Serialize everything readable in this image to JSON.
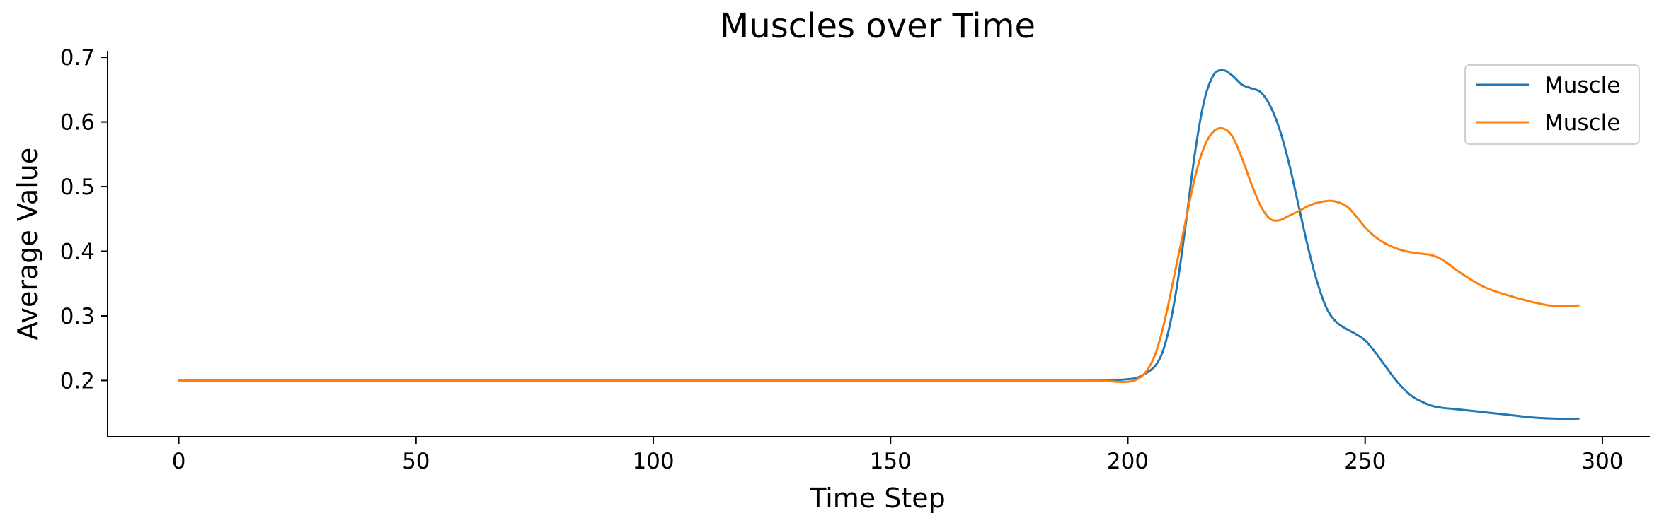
{
  "chart_data": {
    "type": "line",
    "title": "Muscles over Time",
    "xlabel": "Time Step",
    "ylabel": "Average Value",
    "xlim": [
      -15,
      310
    ],
    "ylim": [
      0.113,
      0.71
    ],
    "xticks": [
      0,
      50,
      100,
      150,
      200,
      250,
      300
    ],
    "yticks": [
      0.2,
      0.3,
      0.4,
      0.5,
      0.6,
      0.7
    ],
    "xtick_labels": [
      "0",
      "50",
      "100",
      "150",
      "200",
      "250",
      "300"
    ],
    "ytick_labels": [
      "0.2",
      "0.3",
      "0.4",
      "0.5",
      "0.6",
      "0.7"
    ],
    "grid": false,
    "legend": "top-right",
    "series": [
      {
        "name": "Muscle",
        "color": "#1f77b4",
        "x": [
          0,
          50,
          100,
          150,
          190,
          200,
          203,
          206,
          208,
          210,
          212,
          214,
          216,
          218,
          220,
          222,
          224,
          226,
          228,
          230,
          232,
          234,
          236,
          238,
          240,
          242,
          244,
          246,
          248,
          250,
          252,
          254,
          256,
          258,
          260,
          262,
          264,
          266,
          270,
          275,
          280,
          285,
          290,
          295
        ],
        "y": [
          0.2,
          0.2,
          0.2,
          0.2,
          0.2,
          0.202,
          0.208,
          0.225,
          0.26,
          0.33,
          0.43,
          0.545,
          0.63,
          0.672,
          0.68,
          0.672,
          0.658,
          0.652,
          0.646,
          0.625,
          0.588,
          0.535,
          0.47,
          0.405,
          0.35,
          0.31,
          0.29,
          0.28,
          0.272,
          0.262,
          0.245,
          0.225,
          0.205,
          0.188,
          0.175,
          0.167,
          0.161,
          0.158,
          0.155,
          0.151,
          0.147,
          0.143,
          0.141,
          0.141
        ]
      },
      {
        "name": "Muscle",
        "color": "#ff7f0e",
        "x": [
          0,
          50,
          100,
          150,
          190,
          198,
          200,
          202,
          204,
          206,
          208,
          210,
          212,
          214,
          216,
          218,
          220,
          222,
          224,
          226,
          228,
          230,
          232,
          234,
          236,
          238,
          240,
          243,
          246,
          248,
          250,
          252,
          254,
          256,
          258,
          260,
          262,
          264,
          266,
          268,
          270,
          275,
          280,
          285,
          290,
          295
        ],
        "y": [
          0.2,
          0.2,
          0.2,
          0.2,
          0.2,
          0.198,
          0.198,
          0.202,
          0.215,
          0.245,
          0.3,
          0.37,
          0.44,
          0.51,
          0.56,
          0.585,
          0.59,
          0.578,
          0.545,
          0.505,
          0.47,
          0.45,
          0.448,
          0.455,
          0.462,
          0.47,
          0.475,
          0.478,
          0.47,
          0.455,
          0.437,
          0.423,
          0.413,
          0.406,
          0.401,
          0.398,
          0.396,
          0.394,
          0.388,
          0.378,
          0.367,
          0.345,
          0.332,
          0.322,
          0.315,
          0.316
        ]
      }
    ]
  }
}
